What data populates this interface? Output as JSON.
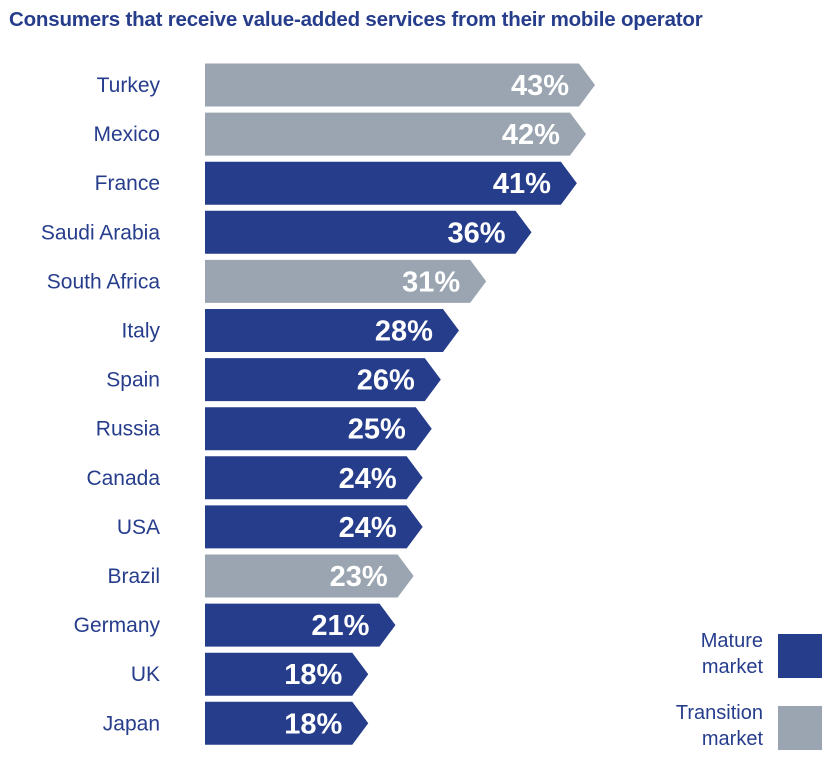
{
  "title": "Consumers that receive value-added services from their mobile operator",
  "colors": {
    "mature": "#263d8c",
    "transition": "#9aa5b1",
    "label_text": "#263d8c",
    "bar_text": "#ffffff"
  },
  "legend": [
    {
      "key": "mature",
      "line1": "Mature",
      "line2": "market",
      "color": "#263d8c"
    },
    {
      "key": "transition",
      "line1": "Transition",
      "line2": "market",
      "color": "#9aa5b1"
    }
  ],
  "chart_data": {
    "type": "bar",
    "orientation": "horizontal",
    "title": "Consumers that receive value-added services from their mobile operator",
    "xlabel": "",
    "ylabel": "",
    "unit": "%",
    "xlim": [
      0,
      43
    ],
    "grid": false,
    "legend_position": "bottom-right",
    "categories": [
      "Turkey",
      "Mexico",
      "France",
      "Saudi Arabia",
      "South Africa",
      "Italy",
      "Spain",
      "Russia",
      "Canada",
      "USA",
      "Brazil",
      "Germany",
      "UK",
      "Japan"
    ],
    "values": [
      43,
      42,
      41,
      36,
      31,
      28,
      26,
      25,
      24,
      24,
      23,
      21,
      18,
      18
    ],
    "value_labels": [
      "43%",
      "42%",
      "41%",
      "36%",
      "31%",
      "28%",
      "26%",
      "25%",
      "24%",
      "24%",
      "23%",
      "21%",
      "18%",
      "18%"
    ],
    "market": [
      "transition",
      "transition",
      "mature",
      "mature",
      "transition",
      "mature",
      "mature",
      "mature",
      "mature",
      "mature",
      "transition",
      "mature",
      "mature",
      "mature"
    ]
  }
}
